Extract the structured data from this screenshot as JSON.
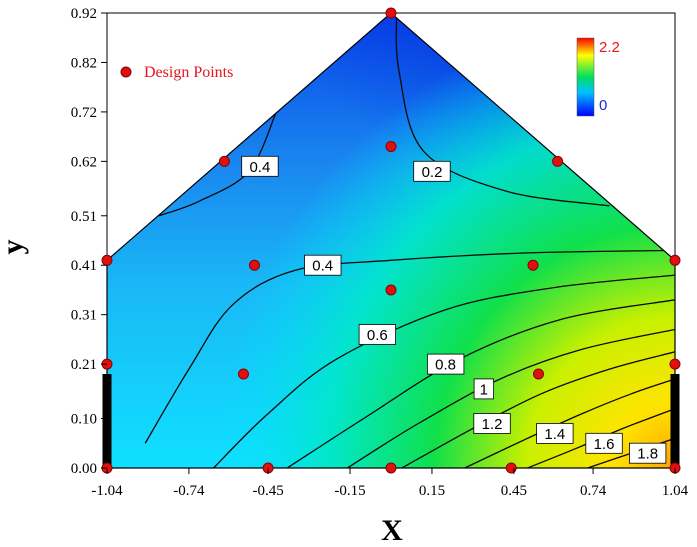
{
  "chart_data": {
    "type": "contour",
    "xlabel": "X",
    "ylabel": "y",
    "xlim": [
      -1.04,
      1.04
    ],
    "ylim": [
      0.0,
      0.92
    ],
    "xticks": [
      "-1.04",
      "-0.74",
      "-0.45",
      "-0.15",
      "0.15",
      "0.45",
      "0.74",
      "1.04"
    ],
    "yticks": [
      "0.00",
      "0.10",
      "0.21",
      "0.31",
      "0.41",
      "0.51",
      "0.62",
      "0.72",
      "0.82",
      "0.92"
    ],
    "region_vertices": [
      [
        -1.04,
        0.0
      ],
      [
        1.04,
        0.0
      ],
      [
        1.04,
        0.42
      ],
      [
        0.0,
        0.92
      ],
      [
        -1.04,
        0.42
      ]
    ],
    "colorbar": {
      "min": 0,
      "max": 2.2,
      "min_label": "0",
      "max_label": "2.2",
      "colors": [
        "#0000ff",
        "#00c0ff",
        "#00e060",
        "#ffff00",
        "#ff0000"
      ]
    },
    "legend": {
      "label": "Design Points",
      "position": "top-left",
      "marker_color": "#e01010"
    },
    "design_points": [
      [
        0.0,
        0.92
      ],
      [
        -0.61,
        0.62
      ],
      [
        0.0,
        0.65
      ],
      [
        0.61,
        0.62
      ],
      [
        -1.04,
        0.42
      ],
      [
        -0.5,
        0.41
      ],
      [
        0.0,
        0.36
      ],
      [
        0.52,
        0.41
      ],
      [
        1.04,
        0.42
      ],
      [
        -1.04,
        0.21
      ],
      [
        -0.54,
        0.19
      ],
      [
        0.54,
        0.19
      ],
      [
        1.04,
        0.21
      ],
      [
        -1.04,
        0.0
      ],
      [
        -0.45,
        0.0
      ],
      [
        0.0,
        0.0
      ],
      [
        0.44,
        0.0
      ],
      [
        1.04,
        0.0
      ]
    ],
    "contours": [
      {
        "level": "0.2",
        "label": "0.2",
        "label_at": [
          0.15,
          0.6
        ],
        "points": [
          [
            0.02,
            0.92
          ],
          [
            0.03,
            0.8
          ],
          [
            0.12,
            0.64
          ],
          [
            0.42,
            0.56
          ],
          [
            0.8,
            0.53
          ]
        ]
      },
      {
        "level": "0.4",
        "label": "0.4",
        "label_at": [
          -0.48,
          0.61
        ],
        "points": [
          [
            -0.85,
            0.51
          ],
          [
            -0.7,
            0.54
          ],
          [
            -0.52,
            0.6
          ],
          [
            -0.42,
            0.72
          ]
        ]
      },
      {
        "level": "0.4",
        "label": "0.4",
        "label_at": [
          -0.25,
          0.41
        ],
        "points": [
          [
            -0.9,
            0.05
          ],
          [
            -0.74,
            0.2
          ],
          [
            -0.58,
            0.33
          ],
          [
            -0.35,
            0.4
          ],
          [
            0.0,
            0.42
          ],
          [
            0.5,
            0.435
          ],
          [
            1.04,
            0.44
          ]
        ]
      },
      {
        "level": "0.6",
        "label": "0.6",
        "label_at": [
          -0.05,
          0.27
        ],
        "points": [
          [
            -0.65,
            0.0
          ],
          [
            -0.45,
            0.11
          ],
          [
            -0.2,
            0.22
          ],
          [
            0.2,
            0.32
          ],
          [
            0.6,
            0.365
          ],
          [
            1.04,
            0.39
          ]
        ]
      },
      {
        "level": "0.8",
        "label": "0.8",
        "label_at": [
          0.2,
          0.21
        ],
        "points": [
          [
            -0.38,
            0.0
          ],
          [
            -0.1,
            0.1
          ],
          [
            0.25,
            0.22
          ],
          [
            0.62,
            0.3
          ],
          [
            1.04,
            0.34
          ]
        ]
      },
      {
        "level": "1",
        "label": "1",
        "label_at": [
          0.34,
          0.16
        ],
        "points": [
          [
            -0.16,
            0.0
          ],
          [
            0.1,
            0.09
          ],
          [
            0.4,
            0.18
          ],
          [
            0.7,
            0.24
          ],
          [
            1.04,
            0.28
          ]
        ]
      },
      {
        "level": "1.2",
        "label": "1.2",
        "label_at": [
          0.37,
          0.09
        ],
        "points": [
          [
            0.04,
            0.0
          ],
          [
            0.3,
            0.08
          ],
          [
            0.55,
            0.15
          ],
          [
            0.8,
            0.2
          ],
          [
            1.04,
            0.235
          ]
        ]
      },
      {
        "level": "1.4",
        "label": "1.4",
        "label_at": [
          0.6,
          0.07
        ],
        "points": [
          [
            0.27,
            0.0
          ],
          [
            0.5,
            0.06
          ],
          [
            0.7,
            0.11
          ],
          [
            0.88,
            0.15
          ],
          [
            1.04,
            0.18
          ]
        ]
      },
      {
        "level": "1.6",
        "label": "1.6",
        "label_at": [
          0.78,
          0.05
        ],
        "points": [
          [
            0.5,
            0.0
          ],
          [
            0.68,
            0.04
          ],
          [
            0.85,
            0.08
          ],
          [
            1.04,
            0.12
          ]
        ]
      },
      {
        "level": "1.8",
        "label": "1.8",
        "label_at": [
          0.94,
          0.03
        ],
        "points": [
          [
            0.72,
            0.0
          ],
          [
            0.88,
            0.03
          ],
          [
            1.04,
            0.06
          ]
        ]
      }
    ]
  }
}
